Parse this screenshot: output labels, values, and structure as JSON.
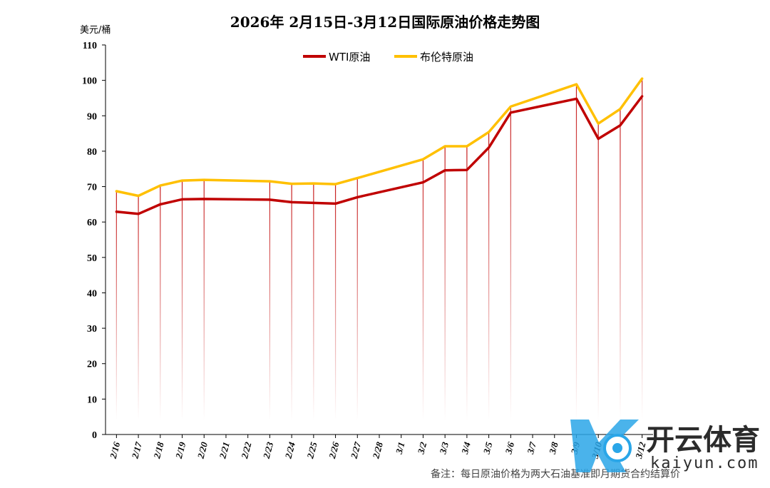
{
  "chart_data": {
    "type": "line",
    "title": "2026年 2月15日-3月12日国际原油价格走势图",
    "ylabel": "美元/桶",
    "ylim": [
      0,
      110
    ],
    "yticks": [
      0,
      10,
      20,
      30,
      40,
      50,
      60,
      70,
      80,
      90,
      100,
      110
    ],
    "categories": [
      "2/16",
      "2/17",
      "2/18",
      "2/19",
      "2/20",
      "2/21",
      "2/22",
      "2/23",
      "2/24",
      "2/25",
      "2/26",
      "2/27",
      "2/28",
      "3/1",
      "3/2",
      "3/3",
      "3/4",
      "3/5",
      "3/6",
      "3/7",
      "3/8",
      "3/9",
      "3/10",
      "3/11",
      "3/12"
    ],
    "series": [
      {
        "name": "WTI原油",
        "color": "#c00000",
        "values": [
          62.9,
          62.3,
          65.0,
          66.4,
          66.5,
          null,
          null,
          66.3,
          65.6,
          65.4,
          65.2,
          67.0,
          null,
          null,
          71.2,
          74.6,
          74.7,
          81.0,
          90.9,
          null,
          null,
          94.8,
          83.5,
          87.3,
          95.5
        ]
      },
      {
        "name": "布伦特原油",
        "color": "#ffc000",
        "values": [
          68.7,
          67.4,
          70.3,
          71.7,
          71.9,
          null,
          null,
          71.5,
          70.8,
          70.9,
          70.7,
          72.4,
          null,
          null,
          77.7,
          81.4,
          81.4,
          85.4,
          92.6,
          null,
          null,
          98.9,
          87.8,
          91.9,
          100.5
        ]
      }
    ],
    "legend_position": "top-center",
    "grid": false,
    "drop_lines": true
  },
  "note": "备注：每日原油价格为两大石油基准即月期货合约结算价",
  "watermark": {
    "brand_text": "开云体育",
    "site_text": "kaiyun.com"
  }
}
